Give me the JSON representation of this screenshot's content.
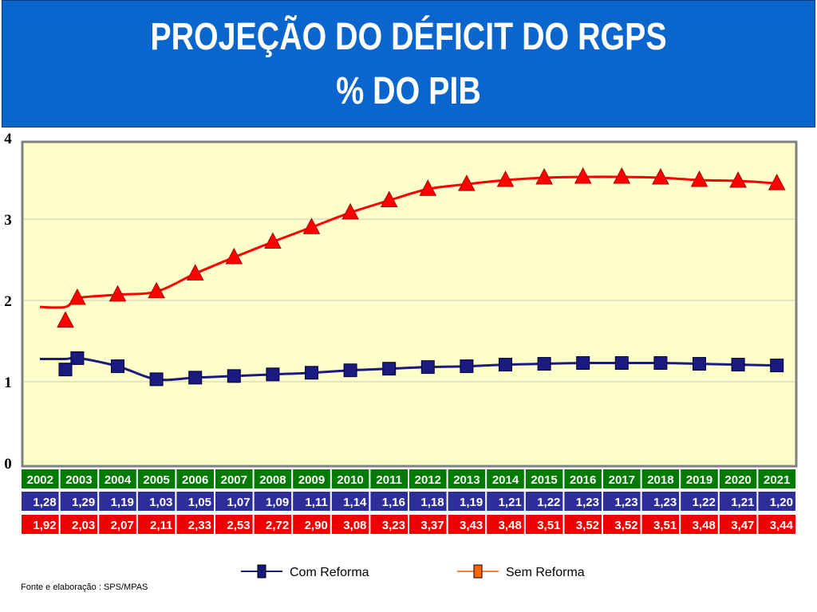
{
  "title": {
    "line1": "PROJEÇÃO DO DÉFICIT DO RGPS",
    "line2": "% DO PIB"
  },
  "source": "Fonte e elaboração : SPS/MPAS",
  "colors": {
    "title_bg": "#0a66cc",
    "plot_bg": "#ffffcc",
    "com_reforma": "#1a1a80",
    "sem_reforma": "#ff0000",
    "year_row": "#007a00",
    "com_row": "#2e2e9a",
    "sem_row": "#ee0000",
    "sem_marker_legend": "#ff6600"
  },
  "chart_data": {
    "type": "line",
    "title": "PROJEÇÃO DO DÉFICIT DO RGPS % DO PIB",
    "categories": [
      "2002",
      "2003",
      "2004",
      "2005",
      "2006",
      "2007",
      "2008",
      "2009",
      "2010",
      "2011",
      "2012",
      "2013",
      "2014",
      "2015",
      "2016",
      "2017",
      "2018",
      "2019",
      "2020",
      "2021"
    ],
    "ylim": [
      0,
      4
    ],
    "yticks": [
      "0",
      "1",
      "2",
      "3",
      "4"
    ],
    "grid": true,
    "legend_position": "bottom",
    "series": [
      {
        "name": "Com Reforma",
        "marker": "square",
        "values": [
          1.28,
          1.29,
          1.19,
          1.03,
          1.05,
          1.07,
          1.09,
          1.11,
          1.14,
          1.16,
          1.18,
          1.19,
          1.21,
          1.22,
          1.23,
          1.23,
          1.23,
          1.22,
          1.21,
          1.2
        ],
        "labels": [
          "1,28",
          "1,29",
          "1,19",
          "1,03",
          "1,05",
          "1,07",
          "1,09",
          "1,11",
          "1,14",
          "1,16",
          "1,18",
          "1,19",
          "1,21",
          "1,22",
          "1,23",
          "1,23",
          "1,23",
          "1,22",
          "1,21",
          "1,20"
        ]
      },
      {
        "name": "Sem Reforma",
        "marker": "triangle",
        "values": [
          1.92,
          2.03,
          2.07,
          2.11,
          2.33,
          2.53,
          2.72,
          2.9,
          3.08,
          3.23,
          3.37,
          3.43,
          3.48,
          3.51,
          3.52,
          3.52,
          3.51,
          3.48,
          3.47,
          3.44
        ],
        "labels": [
          "1,92",
          "2,03",
          "2,07",
          "2,11",
          "2,33",
          "2,53",
          "2,72",
          "2,90",
          "3,08",
          "3,23",
          "3,37",
          "3,43",
          "3,48",
          "3,51",
          "3,52",
          "3,52",
          "3,51",
          "3,48",
          "3,47",
          "3,44"
        ]
      }
    ]
  }
}
